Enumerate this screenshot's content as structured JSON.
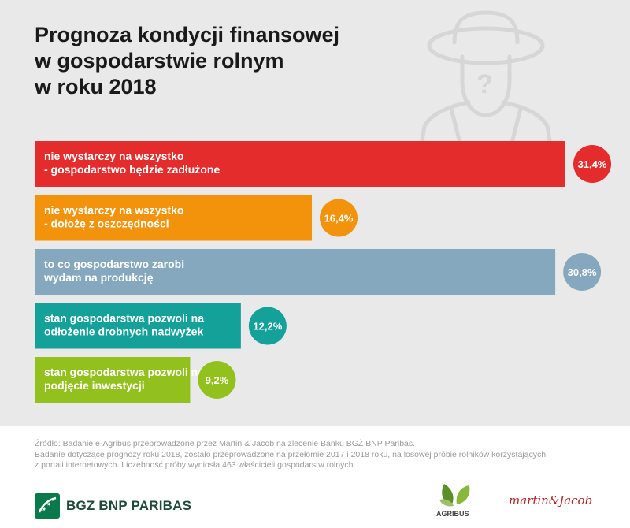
{
  "title_lines": [
    "Prognoza kondycji finansowej",
    "w gospodarstwie rolnym",
    "w roku 2018"
  ],
  "chart_data": {
    "type": "bar",
    "orientation": "horizontal",
    "categories": [
      [
        "nie wystarczy na wszystko",
        "- gospodarstwo będzie zadłużone"
      ],
      [
        "nie wystarczy na wszystko",
        "- dołożę z oszczędności"
      ],
      [
        "to co gospodarstwo zarobi",
        "wydam na produkcję"
      ],
      [
        "stan gospodarstwa pozwoli na",
        "odłożenie drobnych nadwyżek"
      ],
      [
        "stan gospodarstwa pozwoli na",
        "podjęcie inwestycji"
      ]
    ],
    "values": [
      31.4,
      16.4,
      30.8,
      12.2,
      9.2
    ],
    "value_labels": [
      "31,4%",
      "16,4%",
      "30,8%",
      "12,2%",
      "9,2%"
    ],
    "colors": [
      "#e32c2b",
      "#f3930c",
      "#86a8bf",
      "#14a19a",
      "#92c11e"
    ],
    "unit": "%",
    "grid": false,
    "legend": "none"
  },
  "footer": {
    "lines": [
      "Źródło: Badanie e-Agribus przeprowadzone przez Martin & Jacob na zlecenie Banku BGŻ BNP Paribas.",
      "Badanie dotyczące prognozy roku 2018, zostało przeprowadzone na przełomie 2017 i 2018 roku, na losowej próbie rolników korzystających",
      "z portali internetowych.  Liczebność próby wyniosła 463 właścicieli gospodarstw rolnych."
    ]
  },
  "logos": {
    "bank": "BGZ BNP PARIBAS",
    "agribus": "AGRIBUS",
    "martin_jacob": "martin&Jacob"
  },
  "colors": {
    "panel_bg": "#e9e9e9",
    "farmer_line": "#d6d6d6",
    "bank_green": "#1d4a3a"
  }
}
